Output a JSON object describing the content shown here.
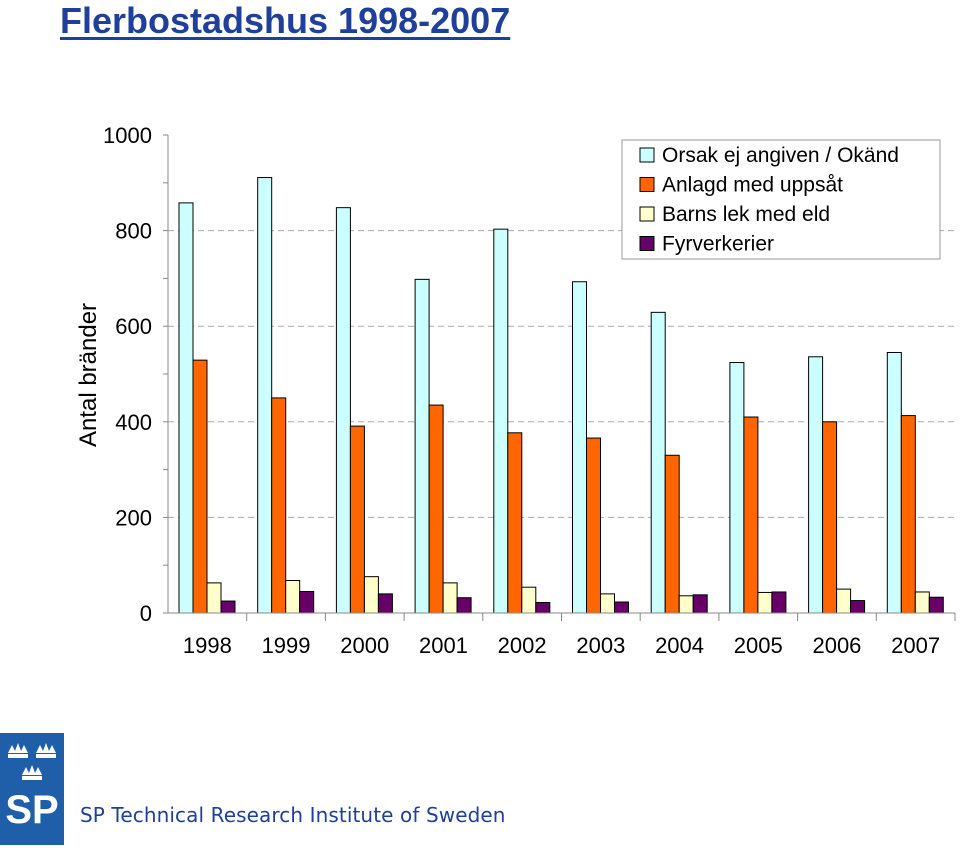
{
  "slide": {
    "title": "Flerbostadshus 1998-2007",
    "organization": "SP Technical Research Institute of Sweden",
    "logo_text": "SP"
  },
  "chart_data": {
    "type": "bar",
    "title": "",
    "xlabel": "",
    "ylabel": "Antal bränder",
    "ylim": [
      0,
      1000
    ],
    "yticks": [
      0,
      200,
      400,
      600,
      800,
      1000
    ],
    "grid": true,
    "legend_position": "top-right",
    "categories": [
      "1998",
      "1999",
      "2000",
      "2001",
      "2002",
      "2003",
      "2004",
      "2005",
      "2006",
      "2007"
    ],
    "series": [
      {
        "name": "Orsak ej angiven / Okänd",
        "color": "#ccffff",
        "values": [
          858,
          911,
          848,
          698,
          803,
          693,
          629,
          524,
          536,
          545
        ]
      },
      {
        "name": "Anlagd med uppsåt",
        "color": "#ff6600",
        "values": [
          529,
          450,
          391,
          435,
          377,
          366,
          330,
          410,
          400,
          413
        ]
      },
      {
        "name": "Barns lek med eld",
        "color": "#ffffcc",
        "values": [
          63,
          68,
          76,
          63,
          54,
          40,
          36,
          43,
          50,
          44
        ]
      },
      {
        "name": "Fyrverkerier",
        "color": "#660066",
        "values": [
          25,
          45,
          40,
          32,
          22,
          23,
          38,
          44,
          26,
          33
        ]
      }
    ]
  }
}
